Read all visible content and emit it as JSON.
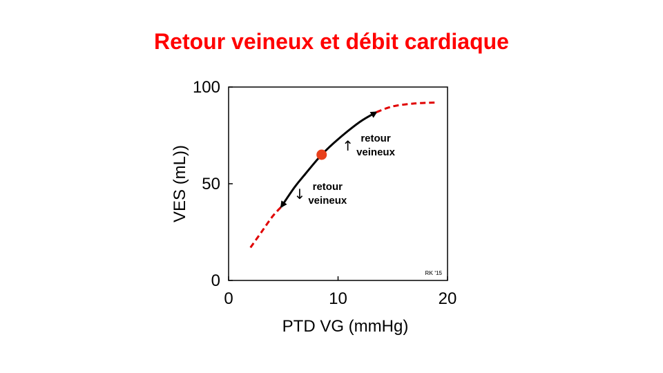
{
  "slide": {
    "title": "Retour veineux et débit cardiaque"
  },
  "colors": {
    "title": "#ff0000",
    "dashed_curve": "#e00000",
    "solid_curve": "#000000",
    "point": "#e8401c"
  },
  "chart_data": {
    "type": "line",
    "xlabel": "PTD VG (mmHg)",
    "ylabel": "VES (mL))",
    "xlim": [
      0,
      20
    ],
    "ylim": [
      0,
      100
    ],
    "x_ticks": [
      "0",
      "10",
      "20"
    ],
    "y_ticks": [
      "0",
      "50",
      "100"
    ],
    "grid": false,
    "series": [
      {
        "style": "dashed",
        "x": [
          2,
          3,
          4,
          4.8
        ],
        "y": [
          17,
          25,
          33,
          38
        ]
      },
      {
        "style": "solid",
        "x": [
          4.8,
          6,
          7,
          8.5,
          10,
          12,
          13.5
        ],
        "y": [
          38,
          48,
          55,
          65,
          73,
          82,
          87
        ]
      },
      {
        "style": "dashed",
        "x": [
          13.5,
          15,
          17,
          19
        ],
        "y": [
          87,
          90,
          91.5,
          92
        ]
      }
    ],
    "point": {
      "x": 8.5,
      "y": 65
    },
    "arrow_heads": [
      {
        "x": 4.8,
        "y": 38,
        "direction": "down"
      },
      {
        "x": 13.5,
        "y": 87,
        "direction": "up"
      }
    ],
    "annotations": [
      {
        "arrow": "↑",
        "line1": "retour",
        "line2": "veineux",
        "x": 11.8,
        "y": 70
      },
      {
        "arrow": "↓",
        "line1": "retour",
        "line2": "veineux",
        "x": 7.4,
        "y": 45
      }
    ],
    "credit": "RK '15"
  }
}
